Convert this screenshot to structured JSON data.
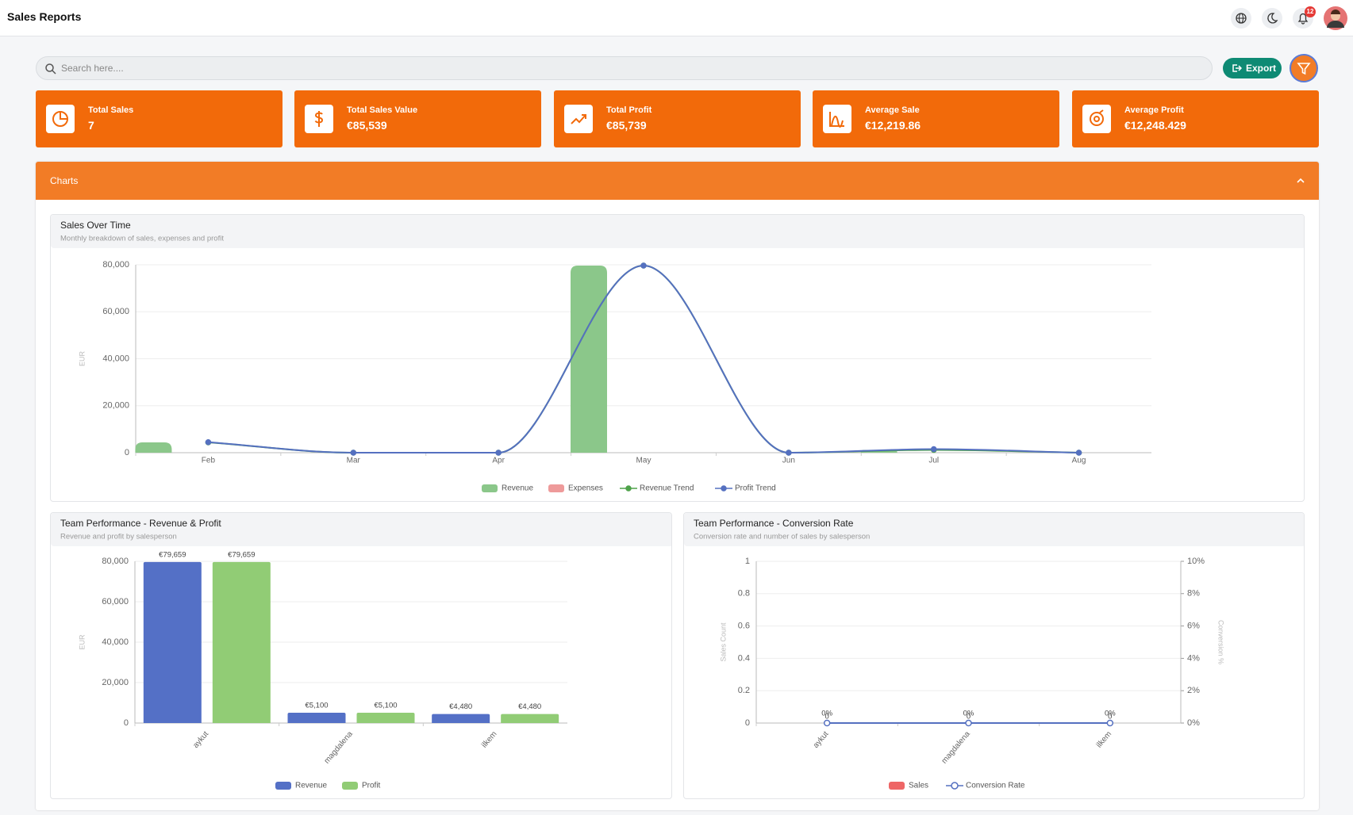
{
  "header": {
    "title": "Sales Reports",
    "notifications": "12"
  },
  "search": {
    "placeholder": "Search here...."
  },
  "export_button": "Export",
  "stats": [
    {
      "label": "Total Sales",
      "value": "7"
    },
    {
      "label": "Total Sales Value",
      "value": "€85,539"
    },
    {
      "label": "Total Profit",
      "value": "€85,739"
    },
    {
      "label": "Average Sale",
      "value": "€12,219.86"
    },
    {
      "label": "Average Profit",
      "value": "€12,248.429"
    }
  ],
  "charts_panel": {
    "title": "Charts"
  },
  "chart_data": [
    {
      "type": "bar",
      "title": "Sales Over Time",
      "subtitle": "Monthly breakdown of sales, expenses and profit",
      "y_label": "EUR",
      "categories": [
        "Feb",
        "Mar",
        "Apr",
        "May",
        "Jun",
        "Jul",
        "Aug"
      ],
      "series": [
        {
          "name": "Revenue",
          "kind": "bar",
          "color": "#8bc78a",
          "values": [
            4400,
            0,
            0,
            79659,
            0,
            1200,
            0
          ]
        },
        {
          "name": "Expenses",
          "kind": "bar",
          "color": "#ee9a9a",
          "values": [
            0,
            0,
            0,
            0,
            0,
            0,
            0
          ]
        },
        {
          "name": "Revenue Trend",
          "kind": "line",
          "color": "#4ea24a",
          "values": [
            4400,
            0,
            0,
            79659,
            0,
            1200,
            0
          ]
        },
        {
          "name": "Profit Trend",
          "kind": "line",
          "color": "#5570c0",
          "values": [
            4480,
            0,
            0,
            79659,
            0,
            1500,
            0
          ]
        }
      ],
      "ylim": [
        0,
        80000
      ],
      "yticks": [
        0,
        {
          "value": 20000,
          "label": "20,000"
        },
        {
          "value": 40000,
          "label": "40,000"
        },
        {
          "value": 60000,
          "label": "60,000"
        },
        {
          "value": 80000,
          "label": "80,000"
        }
      ],
      "grid": true
    },
    {
      "type": "bar",
      "title": "Team Performance - Revenue & Profit",
      "subtitle": "Revenue and profit by salesperson",
      "y_label": "EUR",
      "categories": [
        "aykut",
        "magdalena",
        "ilkem"
      ],
      "series": [
        {
          "name": "Revenue",
          "kind": "bar",
          "color": "#5470c6",
          "values": [
            79659,
            5100,
            4480
          ],
          "value_labels": [
            "€79,659",
            "€5,100",
            "€4,480"
          ]
        },
        {
          "name": "Profit",
          "kind": "bar",
          "color": "#91cc75",
          "values": [
            79659,
            5100,
            4480
          ],
          "value_labels": [
            "€79,659",
            "€5,100",
            "€4,480"
          ]
        }
      ],
      "ylim": [
        0,
        80000
      ],
      "yticks": [
        0,
        {
          "value": 20000,
          "label": "20,000"
        },
        {
          "value": 40000,
          "label": "40,000"
        },
        {
          "value": 60000,
          "label": "60,000"
        },
        {
          "value": 80000,
          "label": "80,000"
        }
      ],
      "grid": true
    },
    {
      "type": "bar",
      "title": "Team Performance - Conversion Rate",
      "subtitle": "Conversion rate and number of sales by salesperson",
      "y_label": "Sales Count",
      "y2_label": "Conversion %",
      "categories": [
        "aykut",
        "magdalena",
        "ilkem"
      ],
      "series": [
        {
          "name": "Sales",
          "kind": "bar",
          "color": "#ee6666",
          "values": [
            0,
            0,
            0
          ]
        },
        {
          "name": "Conversion Rate",
          "kind": "line",
          "axis": "y2",
          "color": "#5570c0",
          "values": [
            0,
            0,
            0
          ],
          "value_labels": [
            "0%",
            "0%",
            "0%"
          ]
        }
      ],
      "ylim": [
        0,
        1
      ],
      "yticks": [
        0,
        0.2,
        0.4,
        0.6,
        0.8,
        1
      ],
      "y2lim": [
        0,
        10
      ],
      "y2ticks": [
        {
          "value": 0,
          "label": "0%"
        },
        {
          "value": 2,
          "label": "2%"
        },
        {
          "value": 4,
          "label": "4%"
        },
        {
          "value": 6,
          "label": "6%"
        },
        {
          "value": 8,
          "label": "8%"
        },
        {
          "value": 10,
          "label": "10%"
        }
      ],
      "grid": true
    }
  ]
}
